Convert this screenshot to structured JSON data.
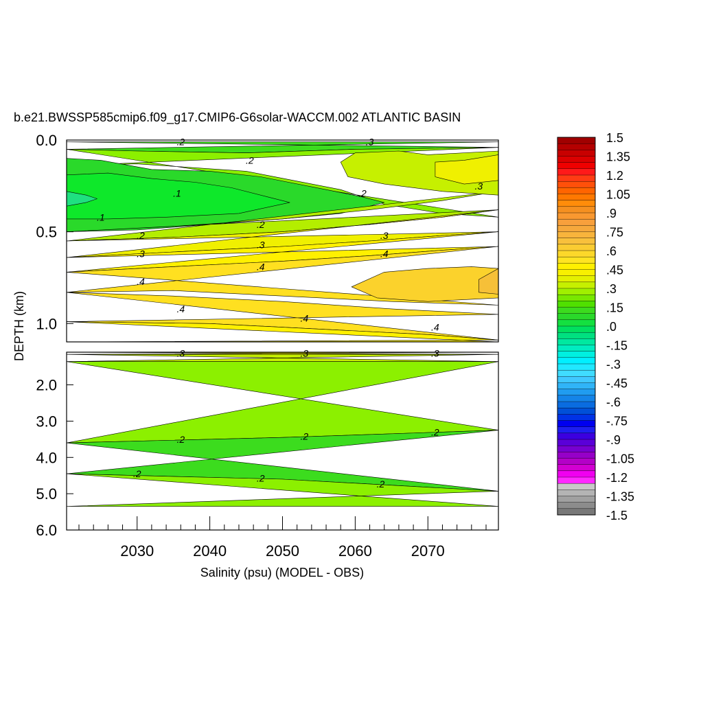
{
  "chart_data": {
    "type": "heatmap",
    "title": "b.e21.BWSSP585cmip6.f09_g17.CMIP6-G6solar-WACCM.002 ATLANTIC BASIN",
    "xlabel": "Salinity (psu) (MODEL - OBS)",
    "ylabel": "DEPTH (km)",
    "xlim": [
      2020.3,
      2079.7
    ],
    "x_ticks": [
      "2030",
      "2040",
      "2050",
      "2060",
      "2070"
    ],
    "upper_panel": {
      "ylim": [
        0.0,
        1.1
      ],
      "y_ticks": [
        "0.0",
        "0.5",
        "1.0"
      ]
    },
    "lower_panel": {
      "ylim": [
        1.1,
        6.0
      ],
      "y_ticks": [
        "2.0",
        "3.0",
        "4.0",
        "5.0",
        "6.0"
      ],
      "data_bottom_depth": 5.35
    },
    "bands": [
      {
        "panel": "upper",
        "value": 0.15,
        "color": "#3cdc1e",
        "top": [
          [
            2020.3,
            0.01
          ],
          [
            2079.7,
            0.01
          ]
        ],
        "bottom": [
          [
            2020.3,
            0.05
          ],
          [
            2030,
            0.06
          ],
          [
            2045,
            0.07
          ],
          [
            2060,
            0.05
          ],
          [
            2079.7,
            0.04
          ]
        ]
      },
      {
        "panel": "upper",
        "value": 0.2,
        "color": "#8cf000",
        "top": [
          [
            2020.3,
            0.05
          ],
          [
            2030,
            0.06
          ],
          [
            2045,
            0.07
          ],
          [
            2060,
            0.05
          ],
          [
            2079.7,
            0.04
          ]
        ],
        "bottom": [
          [
            2020.3,
            0.14
          ],
          [
            2030,
            0.13
          ],
          [
            2045,
            0.17
          ],
          [
            2058,
            0.27
          ],
          [
            2064,
            0.35
          ],
          [
            2072,
            0.4
          ],
          [
            2079.7,
            0.42
          ]
        ]
      },
      {
        "panel": "upper",
        "value": 0.1,
        "color": "#2ad92a",
        "top": [
          [
            2020.3,
            0.1
          ],
          [
            2025,
            0.11
          ],
          [
            2032,
            0.16
          ],
          [
            2040,
            0.17
          ],
          [
            2047,
            0.2
          ],
          [
            2056,
            0.27
          ],
          [
            2061,
            0.31
          ],
          [
            2064,
            0.34
          ]
        ],
        "bottom": [
          [
            2064,
            0.34
          ],
          [
            2058,
            0.4
          ],
          [
            2050,
            0.43
          ],
          [
            2040,
            0.46
          ],
          [
            2030,
            0.49
          ],
          [
            2020.3,
            0.5
          ]
        ]
      },
      {
        "panel": "upper",
        "value": 0.05,
        "color": "#0ee82a",
        "top": [
          [
            2020.3,
            0.19
          ],
          [
            2026,
            0.18
          ],
          [
            2032,
            0.21
          ],
          [
            2038,
            0.23
          ],
          [
            2043,
            0.26
          ],
          [
            2048,
            0.31
          ],
          [
            2051,
            0.34
          ]
        ],
        "bottom": [
          [
            2051,
            0.34
          ],
          [
            2044,
            0.4
          ],
          [
            2034,
            0.42
          ],
          [
            2026,
            0.43
          ],
          [
            2020.3,
            0.43
          ]
        ]
      },
      {
        "panel": "upper",
        "value": 0.0,
        "color": "#1fe080",
        "top": [
          [
            2020.3,
            0.28
          ],
          [
            2023,
            0.3
          ],
          [
            2024.5,
            0.32
          ]
        ],
        "bottom": [
          [
            2024.5,
            0.32
          ],
          [
            2023,
            0.34
          ],
          [
            2020.3,
            0.36
          ]
        ]
      },
      {
        "panel": "upper",
        "value": 0.25,
        "color": "#b4ee00",
        "top": [
          [
            2020.3,
            0.5
          ],
          [
            2035,
            0.47
          ],
          [
            2050,
            0.43
          ],
          [
            2062,
            0.38
          ],
          [
            2072,
            0.33
          ],
          [
            2079.7,
            0.28
          ]
        ],
        "bottom": [
          [
            2020.3,
            0.55
          ],
          [
            2035,
            0.53
          ],
          [
            2050,
            0.5
          ],
          [
            2062,
            0.46
          ],
          [
            2072,
            0.42
          ],
          [
            2079.7,
            0.38
          ]
        ]
      },
      {
        "panel": "upper",
        "value": 0.25,
        "color": "#c6f000",
        "top": [
          [
            2058,
            0.12
          ],
          [
            2060,
            0.07
          ],
          [
            2066,
            0.06
          ],
          [
            2070,
            0.08
          ],
          [
            2079.7,
            0.06
          ]
        ],
        "bottom": [
          [
            2079.7,
            0.3
          ],
          [
            2072,
            0.28
          ],
          [
            2064,
            0.24
          ],
          [
            2059,
            0.2
          ]
        ]
      },
      {
        "panel": "upper",
        "value": 0.3,
        "color": "#f0f000",
        "top": [
          [
            2071,
            0.12
          ],
          [
            2075,
            0.11
          ],
          [
            2079.7,
            0.08
          ]
        ],
        "bottom": [
          [
            2079.7,
            0.22
          ],
          [
            2075,
            0.24
          ],
          [
            2071,
            0.2
          ]
        ]
      },
      {
        "panel": "upper",
        "value": 0.3,
        "color": "#f0f000",
        "top": [
          [
            2020.3,
            0.55
          ],
          [
            2035,
            0.53
          ],
          [
            2050,
            0.5
          ],
          [
            2062,
            0.46
          ],
          [
            2072,
            0.42
          ],
          [
            2079.7,
            0.38
          ]
        ],
        "bottom": [
          [
            2020.3,
            0.64
          ],
          [
            2035,
            0.61
          ],
          [
            2050,
            0.58
          ],
          [
            2062,
            0.55
          ],
          [
            2072,
            0.52
          ],
          [
            2079.7,
            0.5
          ]
        ]
      },
      {
        "panel": "upper",
        "value": 0.35,
        "color": "#fff000",
        "top": [
          [
            2020.3,
            0.64
          ],
          [
            2035,
            0.61
          ],
          [
            2050,
            0.58
          ],
          [
            2062,
            0.55
          ],
          [
            2072,
            0.52
          ],
          [
            2079.7,
            0.5
          ]
        ],
        "bottom": [
          [
            2020.3,
            0.72
          ],
          [
            2035,
            0.69
          ],
          [
            2050,
            0.66
          ],
          [
            2062,
            0.63
          ],
          [
            2072,
            0.6
          ],
          [
            2079.7,
            0.58
          ]
        ]
      },
      {
        "panel": "upper",
        "value": 0.4,
        "color": "#ffe020",
        "top": [
          [
            2020.3,
            0.72
          ],
          [
            2035,
            0.69
          ],
          [
            2050,
            0.66
          ],
          [
            2062,
            0.63
          ],
          [
            2072,
            0.6
          ],
          [
            2079.7,
            0.58
          ]
        ],
        "bottom": [
          [
            2020.3,
            0.83
          ],
          [
            2035,
            0.82
          ],
          [
            2050,
            0.85
          ],
          [
            2065,
            0.88
          ],
          [
            2079.7,
            0.9
          ]
        ]
      },
      {
        "panel": "upper",
        "value": 0.45,
        "color": "#fbd22c",
        "top": [
          [
            2059.5,
            0.8
          ],
          [
            2064,
            0.72
          ],
          [
            2070,
            0.7
          ],
          [
            2076,
            0.69
          ],
          [
            2079.7,
            0.7
          ]
        ],
        "bottom": [
          [
            2079.7,
            0.86
          ],
          [
            2070,
            0.88
          ],
          [
            2063,
            0.86
          ]
        ]
      },
      {
        "panel": "upper",
        "value": 0.5,
        "color": "#f6c038",
        "top": [
          [
            2077,
            0.76
          ],
          [
            2079.7,
            0.7
          ]
        ],
        "bottom": [
          [
            2079.7,
            0.84
          ],
          [
            2077,
            0.83
          ]
        ]
      },
      {
        "panel": "upper",
        "value": 0.4,
        "color": "#ffe020",
        "top": [
          [
            2020.3,
            0.83
          ],
          [
            2035,
            0.85
          ],
          [
            2050,
            0.88
          ],
          [
            2065,
            0.92
          ],
          [
            2079.7,
            0.95
          ]
        ],
        "bottom": [
          [
            2020.3,
            0.99
          ],
          [
            2040,
            1.0
          ],
          [
            2055,
            1.03
          ],
          [
            2070,
            1.06
          ],
          [
            2079.7,
            1.09
          ]
        ]
      },
      {
        "panel": "upper",
        "value": 0.35,
        "color": "#fff000",
        "top": [
          [
            2020.3,
            0.99
          ],
          [
            2040,
            1.0
          ],
          [
            2055,
            1.03
          ],
          [
            2070,
            1.06
          ],
          [
            2079.7,
            1.09
          ]
        ],
        "bottom": [
          [
            2020.3,
            1.1
          ],
          [
            2079.7,
            1.1
          ]
        ]
      },
      {
        "panel": "lower",
        "value": 0.3,
        "color": "#f0f000",
        "top": [
          [
            2020.3,
            1.1
          ],
          [
            2079.7,
            1.1
          ]
        ],
        "bottom": [
          [
            2020.3,
            1.16
          ],
          [
            2079.7,
            1.16
          ]
        ]
      },
      {
        "panel": "lower",
        "value": 0.25,
        "color": "#c6f000",
        "top": [
          [
            2020.3,
            1.16
          ],
          [
            2079.7,
            1.16
          ]
        ],
        "bottom": [
          [
            2020.3,
            1.36
          ],
          [
            2079.7,
            1.36
          ]
        ]
      },
      {
        "panel": "lower",
        "value": 0.2,
        "color": "#8cf000",
        "top": [
          [
            2020.3,
            1.36
          ],
          [
            2079.7,
            1.36
          ]
        ],
        "bottom": [
          [
            2020.3,
            3.6
          ],
          [
            2050,
            3.45
          ],
          [
            2079.7,
            3.25
          ]
        ]
      },
      {
        "panel": "lower",
        "value": 0.15,
        "color": "#3cdc1e",
        "top": [
          [
            2020.3,
            3.6
          ],
          [
            2050,
            3.45
          ],
          [
            2079.7,
            3.25
          ]
        ],
        "bottom": [
          [
            2020.3,
            4.45
          ],
          [
            2050,
            4.6
          ],
          [
            2079.7,
            4.93
          ]
        ]
      },
      {
        "panel": "lower",
        "value": 0.2,
        "color": "#8cf000",
        "top": [
          [
            2020.3,
            4.45
          ],
          [
            2050,
            4.6
          ],
          [
            2079.7,
            4.93
          ]
        ],
        "bottom": [
          [
            2020.3,
            5.35
          ],
          [
            2079.7,
            5.35
          ]
        ]
      }
    ],
    "contour_labels": [
      {
        "panel": "upper",
        "text": ".2",
        "x": 2036,
        "depth": 0.01
      },
      {
        "panel": "upper",
        "text": ".3",
        "x": 2062,
        "depth": 0.01
      },
      {
        "panel": "upper",
        "text": ".2",
        "x": 2045.5,
        "depth": 0.11
      },
      {
        "panel": "upper",
        "text": ".1",
        "x": 2035.5,
        "depth": 0.29
      },
      {
        "panel": "upper",
        "text": ".2",
        "x": 2061,
        "depth": 0.29
      },
      {
        "panel": "upper",
        "text": ".3",
        "x": 2077,
        "depth": 0.25
      },
      {
        "panel": "upper",
        "text": ".1",
        "x": 2025,
        "depth": 0.42
      },
      {
        "panel": "upper",
        "text": ".2",
        "x": 2047,
        "depth": 0.46
      },
      {
        "panel": "upper",
        "text": ".2",
        "x": 2030.5,
        "depth": 0.52
      },
      {
        "panel": "upper",
        "text": ".3",
        "x": 2064,
        "depth": 0.52
      },
      {
        "panel": "upper",
        "text": ".3",
        "x": 2047,
        "depth": 0.57
      },
      {
        "panel": "upper",
        "text": ".3",
        "x": 2030.5,
        "depth": 0.62
      },
      {
        "panel": "upper",
        "text": ".4",
        "x": 2064,
        "depth": 0.62
      },
      {
        "panel": "upper",
        "text": ".4",
        "x": 2047,
        "depth": 0.69
      },
      {
        "panel": "upper",
        "text": ".4",
        "x": 2030.5,
        "depth": 0.77
      },
      {
        "panel": "upper",
        "text": ".4",
        "x": 2036,
        "depth": 0.92
      },
      {
        "panel": "upper",
        "text": ".4",
        "x": 2053,
        "depth": 0.97
      },
      {
        "panel": "upper",
        "text": ".4",
        "x": 2071,
        "depth": 1.02
      },
      {
        "panel": "lower",
        "text": ".3",
        "x": 2036,
        "depth": 1.13
      },
      {
        "panel": "lower",
        "text": ".3",
        "x": 2053,
        "depth": 1.13
      },
      {
        "panel": "lower",
        "text": ".3",
        "x": 2071,
        "depth": 1.13
      },
      {
        "panel": "lower",
        "text": ".2",
        "x": 2036,
        "depth": 3.5
      },
      {
        "panel": "lower",
        "text": ".2",
        "x": 2053,
        "depth": 3.42
      },
      {
        "panel": "lower",
        "text": ".2",
        "x": 2071,
        "depth": 3.3
      },
      {
        "panel": "lower",
        "text": ".2",
        "x": 2030,
        "depth": 4.45
      },
      {
        "panel": "lower",
        "text": ".2",
        "x": 2047,
        "depth": 4.57
      },
      {
        "panel": "lower",
        "text": ".2",
        "x": 2063.5,
        "depth": 4.73
      }
    ],
    "colorbar": {
      "labels": [
        "1.5",
        "1.35",
        "1.2",
        "1.05",
        ".9",
        ".75",
        ".6",
        ".45",
        ".3",
        ".15",
        ".0",
        "-.15",
        "-.3",
        "-.45",
        "-.6",
        "-.75",
        "-.9",
        "-1.05",
        "-1.2",
        "-1.35",
        "-1.5"
      ],
      "colors": [
        "#a00000",
        "#b40000",
        "#c80000",
        "#dc0000",
        "#f00000",
        "#ff1a1a",
        "#ff3c14",
        "#ff500a",
        "#ff6400",
        "#ff7800",
        "#ff8c0a",
        "#f59020",
        "#f99830",
        "#f8a03c",
        "#f6a83c",
        "#f8b43c",
        "#f8c03c",
        "#facc32",
        "#fcd82a",
        "#fee422",
        "#fff000",
        "#f8f000",
        "#e4f000",
        "#c6f000",
        "#a0f000",
        "#78e800",
        "#50e000",
        "#3cdc1e",
        "#2ad92a",
        "#14e040",
        "#00e060",
        "#00e080",
        "#00e8a0",
        "#00ecc0",
        "#00f0e0",
        "#00f0ff",
        "#20e8ff",
        "#40dcff",
        "#40c8ff",
        "#30b4f8",
        "#209cf0",
        "#1484e8",
        "#0a6ce0",
        "#0050d8",
        "#0032e6",
        "#0000f0",
        "#1e1ef0",
        "#3c00e0",
        "#5a00d8",
        "#7800d0",
        "#9600c8",
        "#b400c8",
        "#d200d2",
        "#f000f0",
        "#ff28ff",
        "#c8c8c8",
        "#b4b4b4",
        "#a0a0a0",
        "#8c8c8c",
        "#787878"
      ]
    }
  }
}
